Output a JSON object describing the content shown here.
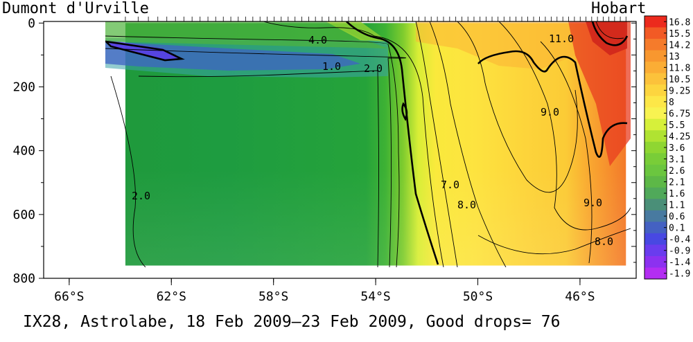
{
  "chart_data": {
    "type": "heatmap",
    "title_left": "Dumont d'Urville",
    "title_right": "Hobart",
    "caption": "IX28, Astrolabe, 18 Feb 2009–23 Feb 2009, Good drops= 76",
    "xlabel": "",
    "ylabel": "",
    "x_ticks": [
      "66°S",
      "62°S",
      "58°S",
      "54°S",
      "50°S",
      "46°S"
    ],
    "x_tick_values": [
      -66,
      -62,
      -58,
      -54,
      -50,
      -46
    ],
    "xlim": [
      -67,
      -43.8
    ],
    "y_ticks": [
      "0",
      "200",
      "400",
      "600",
      "800"
    ],
    "y_tick_values": [
      0,
      200,
      400,
      600,
      800
    ],
    "ylim": [
      800,
      -5
    ],
    "data_extent": {
      "lat": [
        -63.8,
        -44.2
      ],
      "depth": [
        0,
        760
      ]
    },
    "colorbar_levels": [
      "16.8",
      "15.5",
      "14.2",
      "13",
      "11.8",
      "10.5",
      "9.25",
      "8",
      "6.75",
      "5.5",
      "4.25",
      "3.6",
      "3.1",
      "2.6",
      "2.1",
      "1.6",
      "1.1",
      "0.6",
      "0.1",
      "-0.4",
      "-0.9",
      "-1.4",
      "-1.9"
    ],
    "colorbar_colors": [
      "#ec2a1d",
      "#f25a25",
      "#f57b2b",
      "#f8972f",
      "#fbad35",
      "#fcc23b",
      "#fdd53f",
      "#fde748",
      "#f8f351",
      "#d6f03a",
      "#b0e332",
      "#8fd632",
      "#79cd38",
      "#6bc63f",
      "#5db847",
      "#50a95a",
      "#4a8f78",
      "#487aa0",
      "#4461c2",
      "#4848e2",
      "#6a3cee",
      "#8c31f0",
      "#b32df2"
    ],
    "contour_labels": [
      "4.0",
      "1.0",
      "2.0",
      "2.0",
      "11.0",
      "9.0",
      "7.0",
      "8.0",
      "9.0",
      "8.0"
    ],
    "drop_count": 76
  }
}
